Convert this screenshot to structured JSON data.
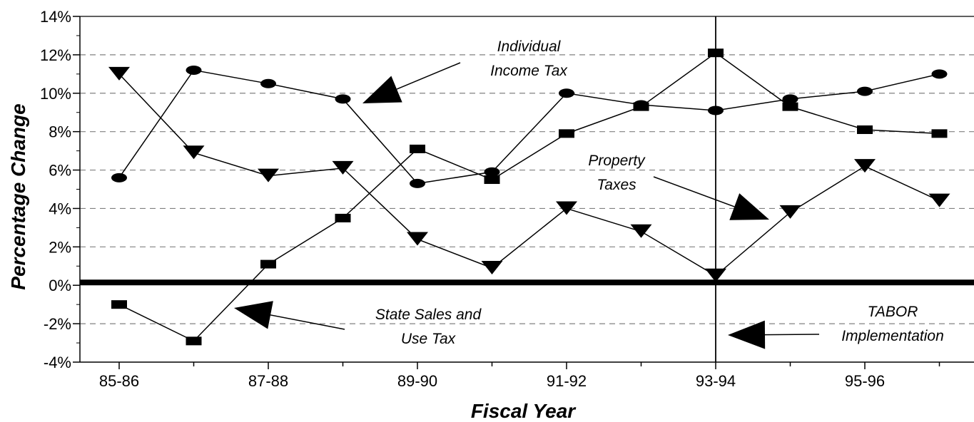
{
  "chart_data": {
    "type": "line",
    "title": "",
    "xlabel": "Fiscal Year",
    "ylabel": "Percentage Change",
    "x": [
      "85-86",
      "86-87",
      "87-88",
      "88-89",
      "89-90",
      "90-91",
      "91-92",
      "92-93",
      "93-94",
      "94-95",
      "95-96",
      "96-97"
    ],
    "x_tick_labels": [
      "85-86",
      "",
      "87-88",
      "",
      "89-90",
      "",
      "91-92",
      "",
      "93-94",
      "",
      "95-96",
      ""
    ],
    "ylim": [
      -4,
      14
    ],
    "y_ticks": [
      -4,
      -2,
      0,
      2,
      4,
      6,
      8,
      10,
      12,
      14
    ],
    "y_tick_labels": [
      "-4%",
      "-2%",
      "0%",
      "2%",
      "4%",
      "6%",
      "8%",
      "10%",
      "12%",
      "14%"
    ],
    "grid": "horizontal dashed",
    "reference_line": {
      "x": "93-94"
    },
    "zero_line": true,
    "series": [
      {
        "key": "income",
        "marker": "circle",
        "values": [
          5.6,
          11.2,
          10.5,
          9.7,
          5.3,
          5.9,
          10.0,
          9.4,
          9.1,
          9.7,
          10.1,
          11.0
        ]
      },
      {
        "key": "property",
        "marker": "triangle-down",
        "values": [
          11.0,
          6.9,
          5.7,
          6.1,
          2.4,
          0.9,
          4.0,
          2.8,
          0.5,
          3.8,
          6.2,
          4.4
        ]
      },
      {
        "key": "sales",
        "marker": "square",
        "values": [
          -1.0,
          -2.9,
          1.1,
          3.5,
          7.1,
          5.5,
          7.9,
          9.3,
          12.1,
          9.3,
          8.1,
          7.9
        ]
      }
    ],
    "annotations": {
      "income": [
        "Individual",
        "Income Tax"
      ],
      "property": [
        "Property",
        "Taxes"
      ],
      "sales": [
        "State Sales and",
        "Use Tax"
      ],
      "tabor": [
        "TABOR",
        "Implementation"
      ]
    },
    "colors": {
      "line": "#000000",
      "grid": "#808080",
      "background": "#ffffff"
    }
  }
}
